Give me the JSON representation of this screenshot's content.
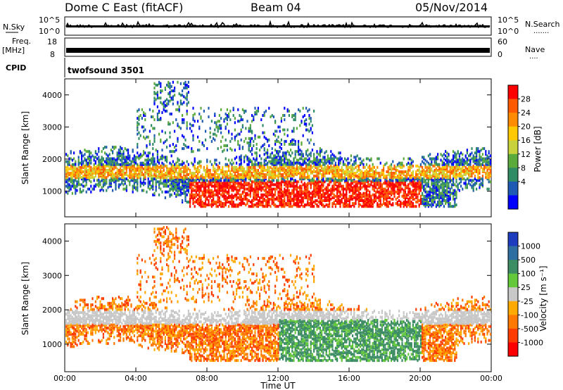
{
  "header": {
    "station": "Dome C East (fitACF)",
    "beam": "Beam 04",
    "date": "05/Nov/2014"
  },
  "nsky_panel": {
    "left_label": "N.Sky",
    "left_ticks": [
      "10^5",
      "10^0"
    ],
    "right_ticks": [
      "10^5",
      "10^0"
    ],
    "right_label": "N.Search",
    "right_dots": "·······"
  },
  "freq_panel": {
    "left_label_1": "Freq.",
    "left_label_2": "[MHz]",
    "left_ticks": [
      "18",
      "8"
    ],
    "right_ticks": [
      "60",
      "0"
    ],
    "right_label": "Nave",
    "right_dots": "····"
  },
  "cpid_panel": {
    "label": "CPID",
    "program": "twofsound 3501"
  },
  "chart_data": [
    {
      "type": "heatmap",
      "name": "power",
      "ylabel": "Slant Range [km]",
      "xlim": [
        0,
        24
      ],
      "ylim": [
        200,
        4500
      ],
      "yticks": [
        1000,
        2000,
        3000,
        4000
      ],
      "ytick_labels": [
        "1000",
        "2000",
        "3000",
        "4000"
      ],
      "colorbar": {
        "label": "Power [dB]",
        "tick_labels": [
          "28",
          "24",
          "20",
          "16",
          "12",
          "8",
          "4"
        ],
        "colors": [
          "#ff0000",
          "#ff5a00",
          "#ff8c00",
          "#ffc800",
          "#c8d23c",
          "#5aaa3c",
          "#2f8c64",
          "#1e5ab4",
          "#0000ff"
        ]
      }
    },
    {
      "type": "heatmap",
      "name": "velocity",
      "ylabel": "Slant Range [km]",
      "xlim": [
        0,
        24
      ],
      "ylim": [
        200,
        4500
      ],
      "yticks": [
        1000,
        2000,
        3000,
        4000
      ],
      "ytick_labels": [
        "1000",
        "2000",
        "3000",
        "4000"
      ],
      "xticks": [
        0,
        4,
        8,
        12,
        16,
        20,
        24
      ],
      "xtick_labels": [
        "00:00",
        "04:00",
        "08:00",
        "12:00",
        "16:00",
        "20:00",
        "00:00"
      ],
      "xlabel": "Time UT",
      "colorbar": {
        "label": "Velocity [m s⁻¹]",
        "tick_labels": [
          "1000",
          "500",
          "100",
          "25",
          "-25",
          "-100",
          "-500",
          "-1000"
        ],
        "colors": [
          "#1e3cbe",
          "#2f6ea0",
          "#3c8c64",
          "#64c83c",
          "#c8c8c8",
          "#ffaa00",
          "#ff7800",
          "#ff3c00",
          "#ff0000"
        ]
      }
    }
  ]
}
